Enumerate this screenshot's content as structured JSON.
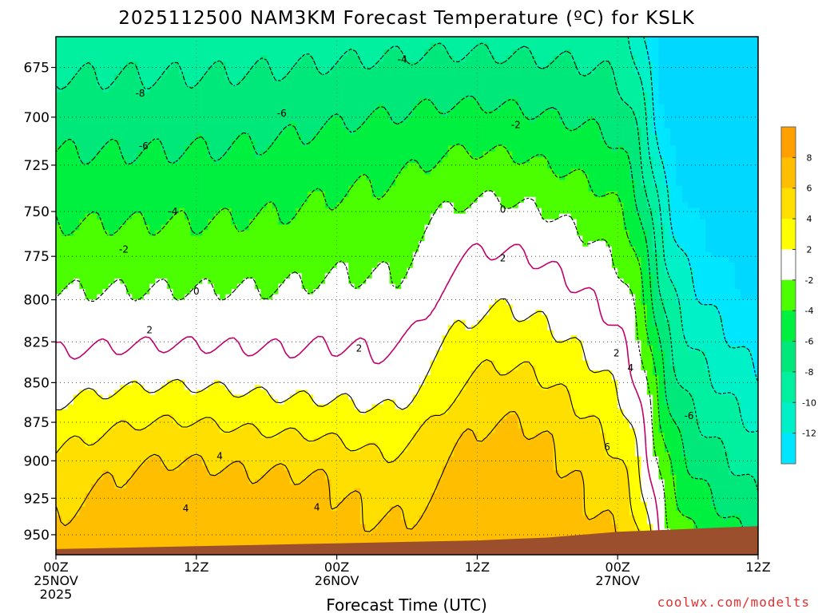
{
  "chart_data": {
    "type": "heatmap",
    "title": "2025112500 NAM3KM Forecast Temperature (ºC) for KSLK",
    "xlabel": "Forecast Time (UTC)",
    "ylabel": "",
    "credit": "coolwx.com/modelts",
    "x_range_hours": [
      0,
      60
    ],
    "x_ticks": [
      {
        "hour": 0,
        "lines": [
          "00Z",
          "25NOV",
          "2025"
        ]
      },
      {
        "hour": 12,
        "lines": [
          "12Z"
        ]
      },
      {
        "hour": 24,
        "lines": [
          "00Z",
          "26NOV"
        ]
      },
      {
        "hour": 36,
        "lines": [
          "12Z"
        ]
      },
      {
        "hour": 48,
        "lines": [
          "00Z",
          "27NOV"
        ]
      },
      {
        "hour": 60,
        "lines": [
          "12Z"
        ]
      }
    ],
    "y_range_hpa": [
      964,
      660
    ],
    "y_ticks": [
      675,
      700,
      725,
      750,
      775,
      800,
      825,
      850,
      875,
      900,
      925,
      950
    ],
    "colorbar": {
      "labels": [
        "8",
        "6",
        "4",
        "2",
        "-2",
        "-4",
        "-6",
        "-8",
        "-10",
        "-12"
      ],
      "bins": [
        {
          "range": [
            8,
            10
          ],
          "color": "#ff9f00"
        },
        {
          "range": [
            6,
            8
          ],
          "color": "#ffbf00"
        },
        {
          "range": [
            4,
            6
          ],
          "color": "#ffdf00"
        },
        {
          "range": [
            2,
            4
          ],
          "color": "#ffff00"
        },
        {
          "range": [
            -2,
            2
          ],
          "color": "#ffffff"
        },
        {
          "range": [
            -4,
            -2
          ],
          "color": "#4bff00"
        },
        {
          "range": [
            -6,
            -4
          ],
          "color": "#00f040"
        },
        {
          "range": [
            -8,
            -6
          ],
          "color": "#00e87a"
        },
        {
          "range": [
            -10,
            -8
          ],
          "color": "#00f0a0"
        },
        {
          "range": [
            -12,
            -10
          ],
          "color": "#00f0c8"
        },
        {
          "range": [
            -14,
            -12
          ],
          "color": "#00e6ff"
        }
      ]
    },
    "colors": {
      "ground": "#9c4f2c",
      "zero_contour": "#c0006a",
      "contour": "#000000",
      "credit": "#e03030"
    },
    "terrain_surface_hpa": [
      {
        "hour": 0,
        "p": 960
      },
      {
        "hour": 6,
        "p": 959
      },
      {
        "hour": 12,
        "p": 958
      },
      {
        "hour": 18,
        "p": 957
      },
      {
        "hour": 24,
        "p": 956
      },
      {
        "hour": 30,
        "p": 955
      },
      {
        "hour": 36,
        "p": 954
      },
      {
        "hour": 42,
        "p": 952
      },
      {
        "hour": 48,
        "p": 948
      },
      {
        "hour": 54,
        "p": 946
      },
      {
        "hour": 60,
        "p": 944
      }
    ],
    "contour_labels": [
      {
        "text": "-8",
        "hour": 7.2,
        "p": 688
      },
      {
        "text": "-6",
        "hour": 19.3,
        "p": 698
      },
      {
        "text": "-6",
        "hour": 7.5,
        "p": 715
      },
      {
        "text": "-4",
        "hour": 29.6,
        "p": 671
      },
      {
        "text": "-2",
        "hour": 39.3,
        "p": 704
      },
      {
        "text": "-4",
        "hour": 10.0,
        "p": 750
      },
      {
        "text": "-2",
        "hour": 5.8,
        "p": 771
      },
      {
        "text": "0",
        "hour": 12.0,
        "p": 795
      },
      {
        "text": "0",
        "hour": 38.2,
        "p": 749
      },
      {
        "text": "2",
        "hour": 8.0,
        "p": 818
      },
      {
        "text": "2",
        "hour": 25.9,
        "p": 829
      },
      {
        "text": "2",
        "hour": 38.2,
        "p": 776
      },
      {
        "text": "2",
        "hour": 47.9,
        "p": 832
      },
      {
        "text": "4",
        "hour": 49.1,
        "p": 841
      },
      {
        "text": "4",
        "hour": 14.0,
        "p": 897
      },
      {
        "text": "4",
        "hour": 11.1,
        "p": 932
      },
      {
        "text": "4",
        "hour": 22.3,
        "p": 931
      },
      {
        "text": "6",
        "hour": 47.1,
        "p": 891
      },
      {
        "text": "-6",
        "hour": 54.1,
        "p": 871
      }
    ]
  }
}
